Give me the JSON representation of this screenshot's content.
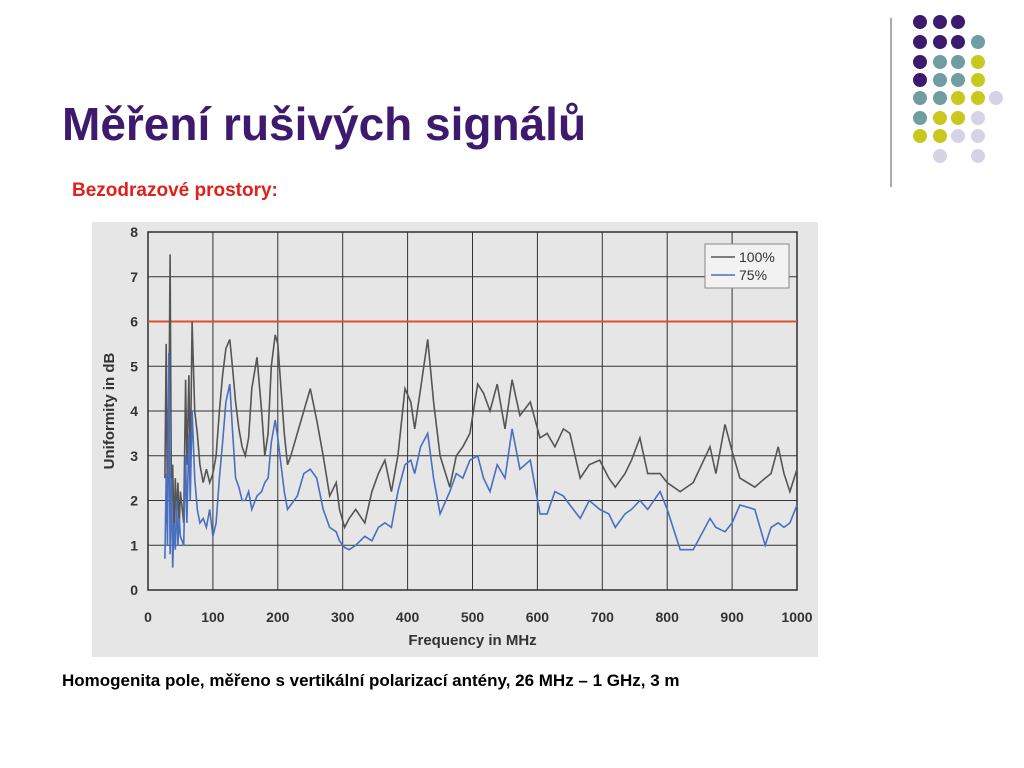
{
  "slide": {
    "title": "Měření rušivých signálů",
    "subtitle": "Bezodrazové prostory:",
    "caption": "Homogenita pole, měřeno s vertikální polarizací antény, 26 MHz – 1 GHz, 3 m"
  },
  "chart_data": {
    "type": "line",
    "x_label": "Frequency in MHz",
    "y_label": "Uniformity in dB",
    "xlim": [
      0,
      1000
    ],
    "ylim": [
      0,
      8
    ],
    "xticks": [
      0,
      100,
      200,
      300,
      400,
      500,
      600,
      700,
      800,
      900,
      1000
    ],
    "yticks": [
      0,
      1,
      2,
      3,
      4,
      5,
      6,
      7,
      8
    ],
    "grid": true,
    "legend": "upper right",
    "reference_line": 6,
    "reference_color": "#e0502a",
    "x": [
      26,
      28,
      30,
      32,
      34,
      36,
      38,
      40,
      42,
      44,
      46,
      48,
      50,
      55,
      58,
      60,
      63,
      65,
      68,
      72,
      76,
      80,
      85,
      90,
      95,
      100,
      105,
      110,
      115,
      120,
      126,
      130,
      135,
      140,
      145,
      150,
      155,
      160,
      168,
      175,
      180,
      185,
      190,
      196,
      200,
      205,
      210,
      215,
      220,
      230,
      240,
      250,
      260,
      270,
      280,
      290,
      295,
      303,
      310,
      320,
      334,
      345,
      355,
      365,
      375,
      385,
      396,
      405,
      411,
      420,
      431,
      440,
      450,
      465,
      475,
      485,
      496,
      508,
      517,
      527,
      538,
      550,
      561,
      573,
      589,
      604,
      615,
      627,
      640,
      650,
      666,
      680,
      696,
      710,
      720,
      735,
      745,
      758,
      770,
      789,
      800,
      820,
      840,
      866,
      875,
      889,
      900,
      912,
      935,
      951,
      960,
      971,
      980,
      989,
      1000
    ],
    "series": [
      {
        "name": "100%",
        "color": "#555555",
        "values": [
          2.5,
          5.5,
          1.5,
          3.7,
          7.5,
          2.0,
          2.8,
          1.2,
          2.5,
          1.6,
          2.4,
          1.4,
          2.2,
          1.5,
          4.7,
          2.8,
          4.8,
          2.5,
          6.0,
          4.0,
          3.5,
          2.8,
          2.4,
          2.7,
          2.4,
          2.6,
          3.0,
          4.0,
          4.8,
          5.4,
          5.6,
          5.0,
          4.2,
          3.6,
          3.2,
          3.0,
          3.4,
          4.5,
          5.2,
          4.0,
          3.0,
          3.5,
          5.0,
          5.7,
          5.5,
          4.5,
          3.5,
          2.8,
          3.0,
          3.5,
          4.0,
          4.5,
          3.8,
          3.0,
          2.1,
          2.4,
          1.8,
          1.4,
          1.6,
          1.8,
          1.5,
          2.2,
          2.6,
          2.9,
          2.2,
          3.0,
          4.5,
          4.2,
          3.6,
          4.5,
          5.6,
          4.2,
          3.0,
          2.3,
          3.0,
          3.2,
          3.5,
          4.6,
          4.4,
          4.0,
          4.6,
          3.6,
          4.7,
          3.9,
          4.2,
          3.4,
          3.5,
          3.2,
          3.6,
          3.5,
          2.5,
          2.8,
          2.9,
          2.5,
          2.3,
          2.6,
          2.9,
          3.4,
          2.6,
          2.6,
          2.4,
          2.2,
          2.4,
          3.2,
          2.6,
          3.7,
          3.1,
          2.5,
          2.3,
          2.5,
          2.6,
          3.2,
          2.6,
          2.2,
          2.7
        ]
      },
      {
        "name": "75%",
        "color": "#4a6fc0",
        "values": [
          0.7,
          2.6,
          1.0,
          5.3,
          0.8,
          2.5,
          0.5,
          1.5,
          0.9,
          2.0,
          1.0,
          1.6,
          1.2,
          1.0,
          3.0,
          1.5,
          3.5,
          2.0,
          4.0,
          2.5,
          1.8,
          1.5,
          1.6,
          1.4,
          1.8,
          1.2,
          1.5,
          2.5,
          3.3,
          4.2,
          4.6,
          3.6,
          2.5,
          2.3,
          2.0,
          2.0,
          2.2,
          1.8,
          2.1,
          2.2,
          2.4,
          2.5,
          3.3,
          3.8,
          3.4,
          2.8,
          2.2,
          1.8,
          1.9,
          2.1,
          2.6,
          2.7,
          2.5,
          1.8,
          1.4,
          1.3,
          1.1,
          0.95,
          0.9,
          1.0,
          1.2,
          1.1,
          1.4,
          1.5,
          1.4,
          2.2,
          2.8,
          2.9,
          2.6,
          3.2,
          3.5,
          2.5,
          1.7,
          2.2,
          2.6,
          2.5,
          2.9,
          3.0,
          2.5,
          2.2,
          2.8,
          2.5,
          3.6,
          2.7,
          2.9,
          1.7,
          1.7,
          2.2,
          2.1,
          1.9,
          1.6,
          2.0,
          1.8,
          1.7,
          1.4,
          1.7,
          1.8,
          2.0,
          1.8,
          2.2,
          1.8,
          0.9,
          0.9,
          1.6,
          1.4,
          1.3,
          1.5,
          1.9,
          1.8,
          1.0,
          1.4,
          1.5,
          1.4,
          1.5,
          1.9
        ]
      }
    ]
  }
}
